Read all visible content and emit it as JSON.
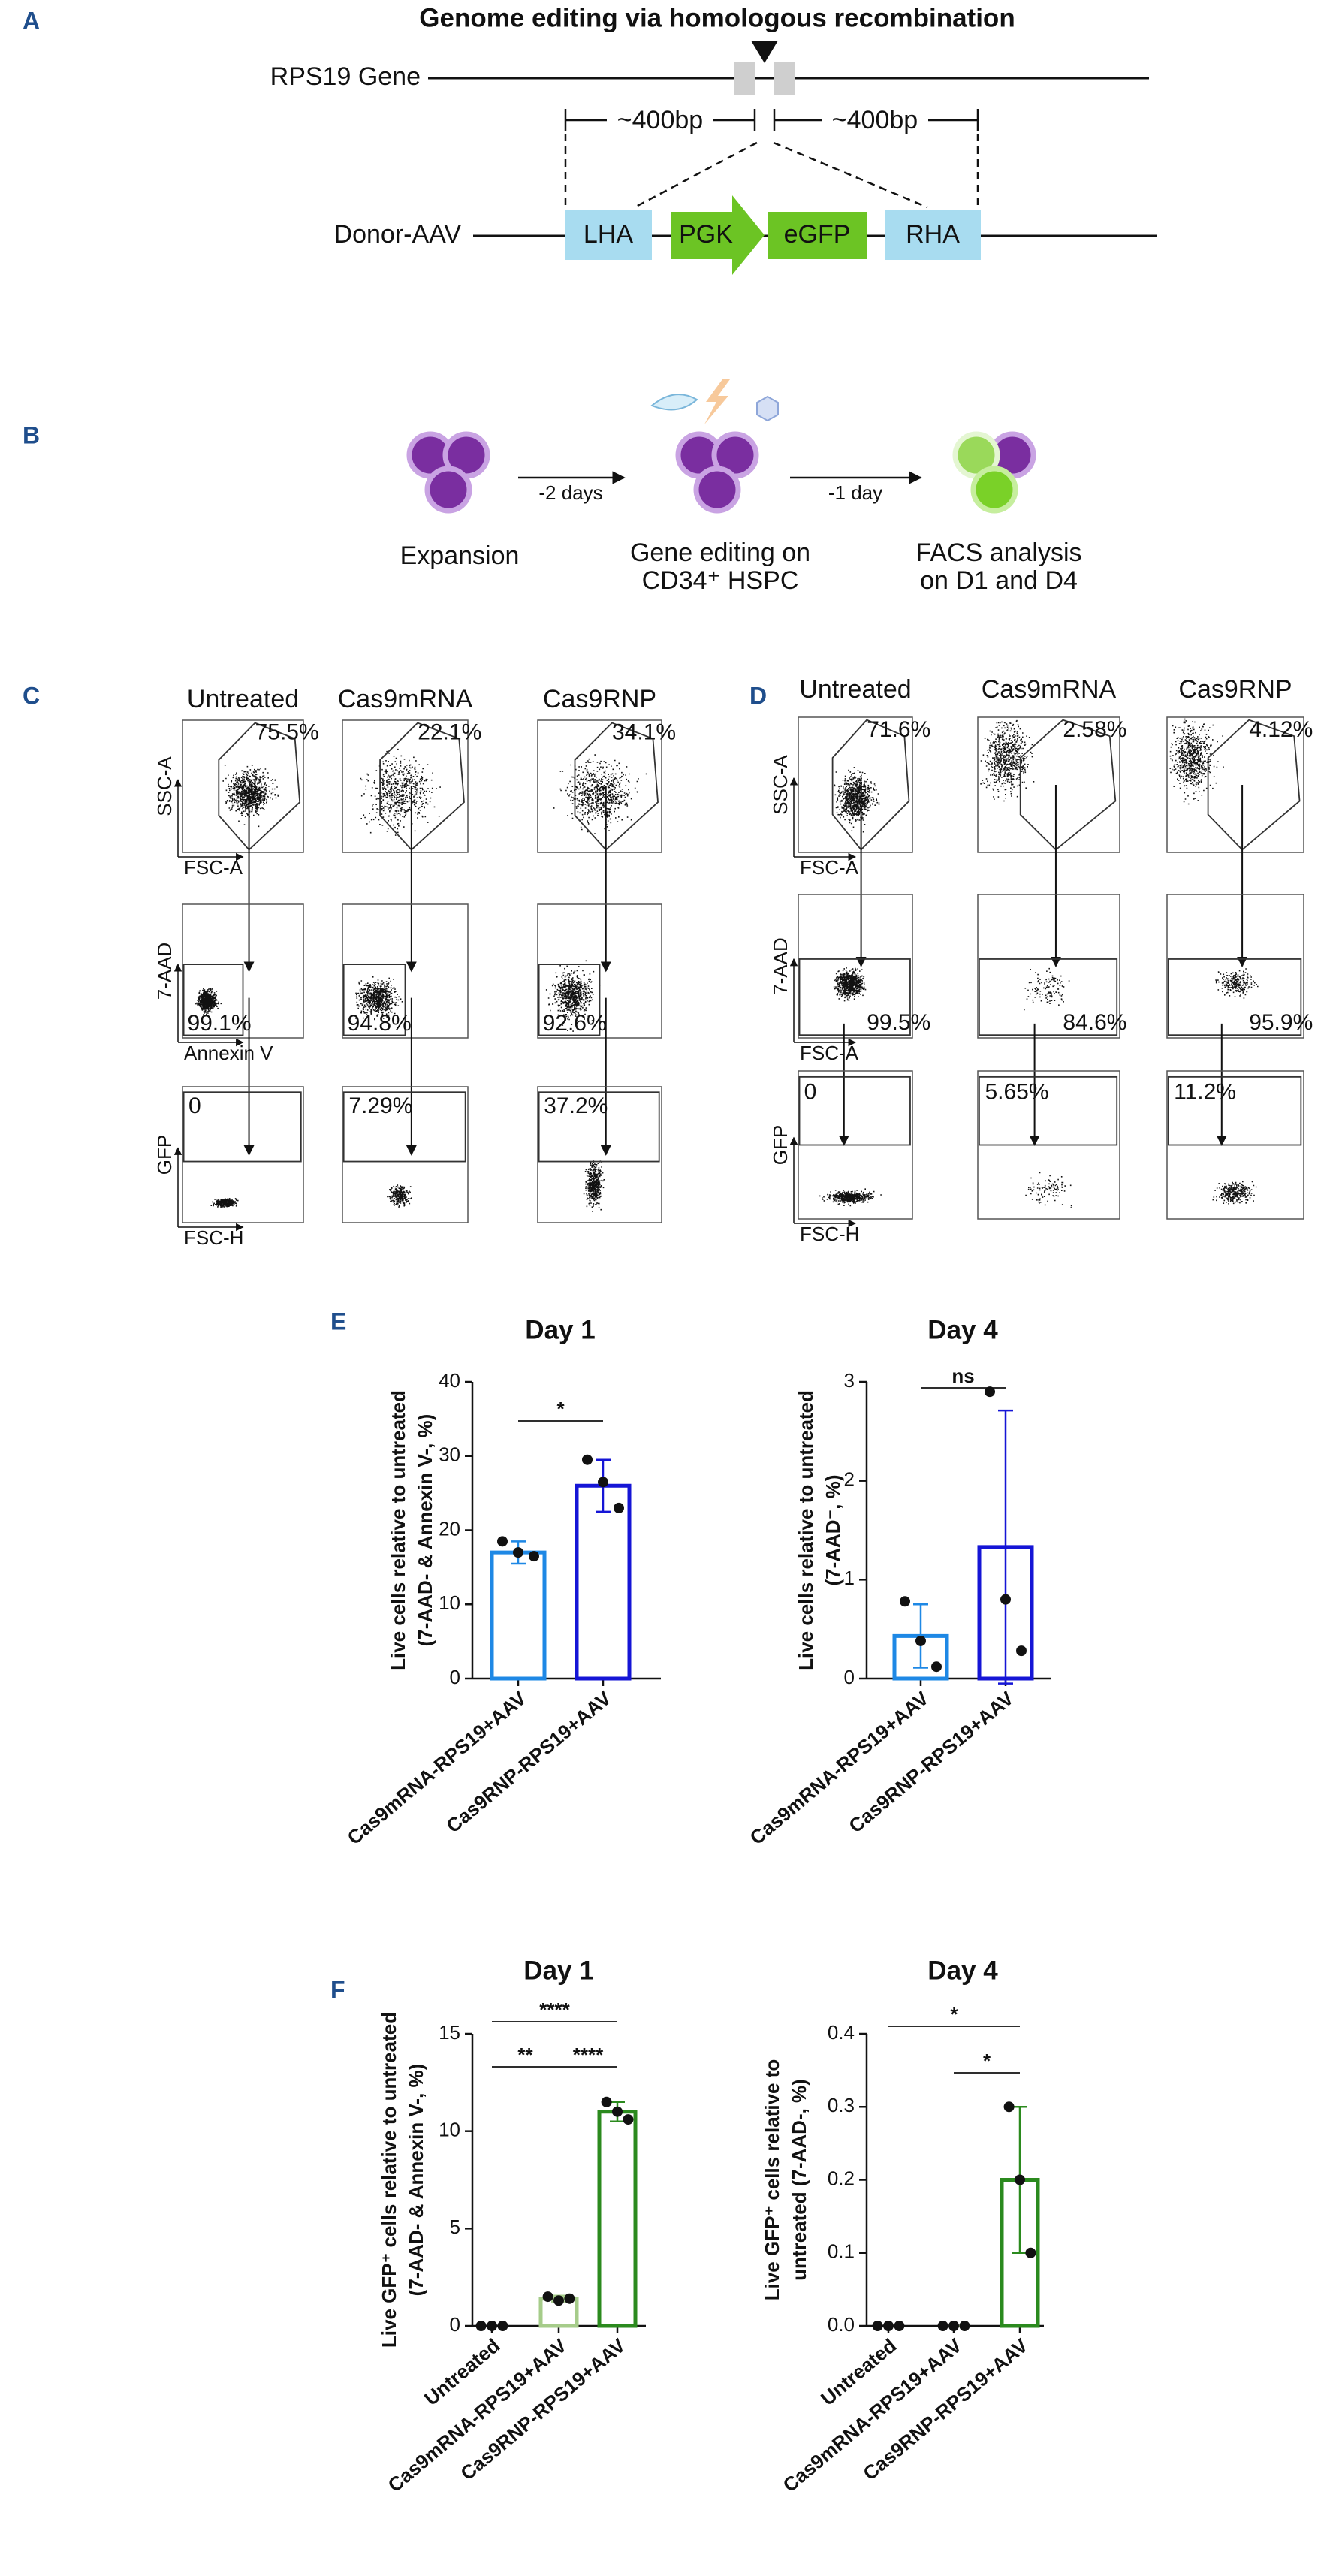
{
  "panel_a": {
    "letter": "A",
    "title": "Genome editing via homologous recombination",
    "gene_label": "RPS19 Gene",
    "left_arm": "~400bp",
    "right_arm": "~400bp",
    "donor_label": "Donor-AAV",
    "elements": [
      "LHA",
      "PGK",
      "eGFP",
      "RHA"
    ]
  },
  "panel_b": {
    "letter": "B",
    "steps": [
      "Expansion",
      "Gene editing on",
      "CD34⁺ HSPC",
      "FACS analysis",
      "on D1 and D4"
    ],
    "arrows": [
      "-2 days",
      "-1 day"
    ]
  },
  "flow_c": {
    "letter": "C",
    "columns": [
      "Untreated",
      "Cas9mRNA",
      "Cas9RNP"
    ],
    "axes": [
      [
        "SSC-A",
        "FSC-A"
      ],
      [
        "7-AAD",
        "Annexin V"
      ],
      [
        "GFP",
        "FSC-H"
      ]
    ],
    "gates": [
      [
        "75.5%",
        "22.1%",
        "34.1%"
      ],
      [
        "99.1%",
        "94.8%",
        "92.6%"
      ],
      [
        "0",
        "7.29%",
        "37.2%"
      ]
    ]
  },
  "flow_d": {
    "letter": "D",
    "columns": [
      "Untreated",
      "Cas9mRNA",
      "Cas9RNP"
    ],
    "axes": [
      [
        "SSC-A",
        "FSC-A"
      ],
      [
        "7-AAD",
        "FSC-A"
      ],
      [
        "GFP",
        "FSC-H"
      ]
    ],
    "gates": [
      [
        "71.6%",
        "2.58%",
        "4.12%"
      ],
      [
        "99.5%",
        "84.6%",
        "95.9%"
      ],
      [
        "0",
        "5.65%",
        "11.2%"
      ]
    ]
  },
  "panel_e": {
    "letter": "E"
  },
  "panel_f": {
    "letter": "F"
  },
  "chart_data": [
    {
      "type": "bar",
      "title": "Day 1",
      "ylabel": [
        "Live cells relative to untreated",
        "(7-AAD- & Annexin V-, %)"
      ],
      "categories": [
        "Cas9mRNA-RPS19+AAV",
        "Cas9RNP-RPS19+AAV"
      ],
      "values": [
        17,
        26
      ],
      "errors": [
        1.5,
        3.5
      ],
      "points": [
        [
          18.5,
          17,
          16.5
        ],
        [
          29.5,
          26.5,
          23
        ]
      ],
      "colors": [
        "#1e88e5",
        "#1515d6"
      ],
      "ylim": [
        0,
        40
      ],
      "yticks": [
        0,
        10,
        20,
        30,
        40
      ],
      "significance": [
        {
          "from": 0,
          "to": 1,
          "label": "*"
        }
      ]
    },
    {
      "type": "bar",
      "title": "Day 4",
      "ylabel": [
        "Live cells relative to untreated",
        "(7-AAD⁻, %)"
      ],
      "categories": [
        "Cas9mRNA-RPS19+AAV",
        "Cas9RNP-RPS19+AAV"
      ],
      "values": [
        0.43,
        1.33
      ],
      "errors": [
        0.32,
        1.38
      ],
      "points": [
        [
          0.78,
          0.38,
          0.12
        ],
        [
          2.9,
          0.8,
          0.28
        ]
      ],
      "colors": [
        "#1e88e5",
        "#1515d6"
      ],
      "ylim": [
        0,
        3
      ],
      "yticks": [
        0,
        1,
        2,
        3
      ],
      "significance": [
        {
          "from": 0,
          "to": 1,
          "label": "ns"
        }
      ]
    },
    {
      "type": "bar",
      "title": "Day 1",
      "ylabel": [
        "Live GFP⁺ cells relative to untreated",
        "(7-AAD- & Annexin V-, %)"
      ],
      "categories": [
        "Untreated",
        "Cas9mRNA-RPS19+AAV",
        "Cas9RNP-RPS19+AAV"
      ],
      "values": [
        0,
        1.4,
        11
      ],
      "errors": [
        0,
        0.15,
        0.5
      ],
      "points": [
        [
          0,
          0,
          0
        ],
        [
          1.5,
          1.3,
          1.4
        ],
        [
          11.5,
          11,
          10.6
        ]
      ],
      "colors": [
        "#111111",
        "#a6cc8a",
        "#2b8a1e"
      ],
      "ylim": [
        0,
        15
      ],
      "yticks": [
        0,
        5,
        10,
        15
      ],
      "significance": [
        {
          "from": 0,
          "to": 2,
          "label": "****"
        },
        {
          "from": 0,
          "to": 1,
          "label": "**"
        },
        {
          "from": 1,
          "to": 2,
          "label": "****"
        }
      ]
    },
    {
      "type": "bar",
      "title": "Day 4",
      "ylabel": [
        "Live GFP⁺ cells relative to",
        "untreated (7-AAD-, %)"
      ],
      "categories": [
        "Untreated",
        "Cas9mRNA-RPS19+AAV",
        "Cas9RNP-RPS19+AAV"
      ],
      "values": [
        0,
        0,
        0.2
      ],
      "errors": [
        0,
        0,
        0.1
      ],
      "points": [
        [
          0,
          0,
          0
        ],
        [
          0,
          0,
          0
        ],
        [
          0.3,
          0.2,
          0.1
        ]
      ],
      "colors": [
        "#111111",
        "#a6cc8a",
        "#2b8a1e"
      ],
      "ylim": [
        0,
        0.4
      ],
      "yticks": [
        {
          "value": 0,
          "label": "0.0"
        },
        0.1,
        0.2,
        0.3,
        0.4
      ],
      "significance": [
        {
          "from": 0,
          "to": 2,
          "label": "*"
        },
        {
          "from": 1,
          "to": 2,
          "label": "*"
        }
      ]
    }
  ]
}
